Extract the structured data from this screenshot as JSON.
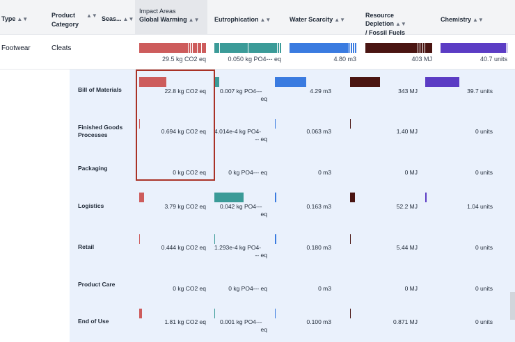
{
  "header": {
    "type": "Type",
    "product_category_line1": "Product",
    "product_category_line2": "Category",
    "season": "Seas...",
    "impact_areas": "Impact Areas",
    "global_warming": "Global Warming",
    "eutrophication": "Eutrophication",
    "water_scarcity": "Water Scarcity",
    "resource_depletion_line1": "Resource Depletion",
    "resource_depletion_line2": "/ Fossil Fuels",
    "chemistry": "Chemistry",
    "sort_glyph": "▲▼"
  },
  "summary": {
    "type": "Footwear",
    "category": "Cleats",
    "global_warming": "29.5 kg CO2 eq",
    "eutrophication": "0.050 kg PO4--- eq",
    "water_scarcity": "4.80 m3",
    "resource_depletion": "403 MJ",
    "chemistry": "40.7 units"
  },
  "colors": {
    "global_warming": "#cd5c5c",
    "eutrophication": "#3b9b98",
    "water_scarcity": "#3a7be0",
    "resource_depletion": "#4a1512",
    "chemistry": "#5b3cc4",
    "highlight": "#a93226"
  },
  "rows": [
    {
      "label": "Bill of Materials",
      "global_warming": "22.8 kg CO2 eq",
      "eutrophication_l1": "0.007 kg PO4---",
      "eutrophication_l2": "eq",
      "water_scarcity": "4.29 m3",
      "resource_depletion": "343 MJ",
      "chemistry": "39.7 units"
    },
    {
      "label": "Finished Goods Processes",
      "global_warming": "0.694 kg CO2 eq",
      "eutrophication_l1": "4.014e-4 kg PO4-",
      "eutrophication_l2": "-- eq",
      "water_scarcity": "0.063 m3",
      "resource_depletion": "1.40 MJ",
      "chemistry": "0 units"
    },
    {
      "label": "Packaging",
      "global_warming": "0 kg CO2 eq",
      "eutrophication_l1": "0 kg PO4--- eq",
      "eutrophication_l2": "",
      "water_scarcity": "0 m3",
      "resource_depletion": "0 MJ",
      "chemistry": "0 units"
    },
    {
      "label": "Logistics",
      "global_warming": "3.79 kg CO2 eq",
      "eutrophication_l1": "0.042 kg PO4---",
      "eutrophication_l2": "eq",
      "water_scarcity": "0.163 m3",
      "resource_depletion": "52.2 MJ",
      "chemistry": "1.04 units"
    },
    {
      "label": "Retail",
      "global_warming": "0.444 kg CO2 eq",
      "eutrophication_l1": "1.293e-4 kg PO4-",
      "eutrophication_l2": "-- eq",
      "water_scarcity": "0.180 m3",
      "resource_depletion": "5.44 MJ",
      "chemistry": "0 units"
    },
    {
      "label": "Product Care",
      "global_warming": "0 kg CO2 eq",
      "eutrophication_l1": "0 kg PO4--- eq",
      "eutrophication_l2": "",
      "water_scarcity": "0 m3",
      "resource_depletion": "0 MJ",
      "chemistry": "0 units"
    },
    {
      "label": "End of Use",
      "global_warming": "1.81 kg CO2 eq",
      "eutrophication_l1": "0.001 kg PO4---",
      "eutrophication_l2": "eq",
      "water_scarcity": "0.100 m3",
      "resource_depletion": "0.871 MJ",
      "chemistry": "0 units"
    }
  ]
}
